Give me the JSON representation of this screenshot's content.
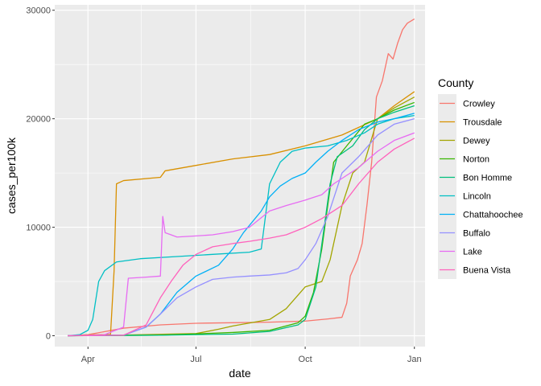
{
  "chart_data": {
    "type": "line",
    "title": "",
    "xlabel": "date",
    "ylabel": "cases_per100k",
    "x_ticks": [
      "Apr",
      "Jul",
      "Oct",
      "Jan"
    ],
    "y_ticks": [
      "0",
      "10000",
      "20000",
      "30000"
    ],
    "xlim": [
      "2020-03-04",
      "2021-01-10"
    ],
    "ylim": [
      -1000,
      30500
    ],
    "grid": true,
    "legend_position": "right",
    "legend_title": "County",
    "series": [
      {
        "name": "Crowley",
        "color": "#F8766D",
        "points": [
          [
            "2020-03-15",
            0
          ],
          [
            "2020-04-01",
            100
          ],
          [
            "2020-05-01",
            700
          ],
          [
            "2020-06-01",
            1000
          ],
          [
            "2020-07-01",
            1150
          ],
          [
            "2020-08-01",
            1200
          ],
          [
            "2020-09-01",
            1250
          ],
          [
            "2020-10-01",
            1350
          ],
          [
            "2020-10-20",
            1550
          ],
          [
            "2020-11-01",
            1700
          ],
          [
            "2020-11-05",
            3000
          ],
          [
            "2020-11-08",
            5500
          ],
          [
            "2020-11-14",
            7000
          ],
          [
            "2020-11-18",
            8500
          ],
          [
            "2020-11-22",
            12000
          ],
          [
            "2020-11-26",
            16000
          ],
          [
            "2020-11-30",
            22000
          ],
          [
            "2020-12-05",
            23500
          ],
          [
            "2020-12-10",
            26000
          ],
          [
            "2020-12-14",
            25500
          ],
          [
            "2020-12-18",
            27000
          ],
          [
            "2020-12-22",
            28200
          ],
          [
            "2020-12-26",
            28800
          ],
          [
            "2021-01-01",
            29200
          ]
        ]
      },
      {
        "name": "Trousdale",
        "color": "#D89000",
        "points": [
          [
            "2020-03-15",
            0
          ],
          [
            "2020-04-01",
            80
          ],
          [
            "2020-04-20",
            120
          ],
          [
            "2020-04-23",
            6000
          ],
          [
            "2020-04-25",
            14000
          ],
          [
            "2020-05-01",
            14300
          ],
          [
            "2020-06-01",
            14600
          ],
          [
            "2020-06-05",
            15200
          ],
          [
            "2020-07-01",
            15700
          ],
          [
            "2020-08-01",
            16300
          ],
          [
            "2020-09-01",
            16700
          ],
          [
            "2020-10-01",
            17500
          ],
          [
            "2020-11-01",
            18500
          ],
          [
            "2020-12-01",
            20000
          ],
          [
            "2020-12-15",
            21200
          ],
          [
            "2021-01-01",
            22500
          ]
        ]
      },
      {
        "name": "Dewey",
        "color": "#A3A500",
        "points": [
          [
            "2020-03-15",
            0
          ],
          [
            "2020-05-01",
            60
          ],
          [
            "2020-07-01",
            200
          ],
          [
            "2020-07-20",
            600
          ],
          [
            "2020-08-01",
            900
          ],
          [
            "2020-09-01",
            1500
          ],
          [
            "2020-09-15",
            2500
          ],
          [
            "2020-10-01",
            4500
          ],
          [
            "2020-10-15",
            5000
          ],
          [
            "2020-10-22",
            7000
          ],
          [
            "2020-11-01",
            12000
          ],
          [
            "2020-11-10",
            15000
          ],
          [
            "2020-11-20",
            16000
          ],
          [
            "2020-12-01",
            20000
          ],
          [
            "2020-12-15",
            21000
          ],
          [
            "2021-01-01",
            22000
          ]
        ]
      },
      {
        "name": "Norton",
        "color": "#39B600",
        "points": [
          [
            "2020-03-15",
            0
          ],
          [
            "2020-06-01",
            50
          ],
          [
            "2020-08-01",
            300
          ],
          [
            "2020-09-01",
            500
          ],
          [
            "2020-09-25",
            1200
          ],
          [
            "2020-10-01",
            1800
          ],
          [
            "2020-10-08",
            4000
          ],
          [
            "2020-10-15",
            8000
          ],
          [
            "2020-10-20",
            12000
          ],
          [
            "2020-10-25",
            16000
          ],
          [
            "2020-11-05",
            17500
          ],
          [
            "2020-11-20",
            19500
          ],
          [
            "2020-12-01",
            20000
          ],
          [
            "2020-12-15",
            20800
          ],
          [
            "2021-01-01",
            21500
          ]
        ]
      },
      {
        "name": "Bon Homme",
        "color": "#00BF7D",
        "points": [
          [
            "2020-03-15",
            0
          ],
          [
            "2020-06-01",
            50
          ],
          [
            "2020-08-01",
            150
          ],
          [
            "2020-09-01",
            400
          ],
          [
            "2020-09-25",
            1000
          ],
          [
            "2020-10-01",
            1500
          ],
          [
            "2020-10-10",
            4500
          ],
          [
            "2020-10-17",
            10000
          ],
          [
            "2020-10-22",
            14000
          ],
          [
            "2020-10-28",
            16500
          ],
          [
            "2020-11-10",
            17500
          ],
          [
            "2020-11-20",
            19000
          ],
          [
            "2020-12-01",
            20000
          ],
          [
            "2020-12-15",
            20600
          ],
          [
            "2021-01-01",
            21200
          ]
        ]
      },
      {
        "name": "Lincoln",
        "color": "#00BFC4",
        "points": [
          [
            "2020-03-15",
            0
          ],
          [
            "2020-03-25",
            100
          ],
          [
            "2020-04-01",
            500
          ],
          [
            "2020-04-05",
            1500
          ],
          [
            "2020-04-10",
            5000
          ],
          [
            "2020-04-15",
            6000
          ],
          [
            "2020-04-25",
            6800
          ],
          [
            "2020-05-15",
            7100
          ],
          [
            "2020-06-15",
            7300
          ],
          [
            "2020-07-15",
            7500
          ],
          [
            "2020-08-15",
            7700
          ],
          [
            "2020-08-25",
            8000
          ],
          [
            "2020-09-01",
            14000
          ],
          [
            "2020-09-10",
            16000
          ],
          [
            "2020-09-20",
            17000
          ],
          [
            "2020-10-01",
            17300
          ],
          [
            "2020-10-20",
            17500
          ],
          [
            "2020-11-05",
            18000
          ],
          [
            "2020-11-20",
            18700
          ],
          [
            "2020-12-01",
            19500
          ],
          [
            "2020-12-15",
            20000
          ],
          [
            "2021-01-01",
            20300
          ]
        ]
      },
      {
        "name": "Chattahoochee",
        "color": "#00B0F6",
        "points": [
          [
            "2020-03-15",
            0
          ],
          [
            "2020-05-01",
            60
          ],
          [
            "2020-05-20",
            800
          ],
          [
            "2020-06-01",
            2000
          ],
          [
            "2020-06-15",
            4000
          ],
          [
            "2020-07-01",
            5500
          ],
          [
            "2020-07-20",
            6500
          ],
          [
            "2020-08-01",
            8000
          ],
          [
            "2020-08-10",
            9500
          ],
          [
            "2020-08-25",
            11500
          ],
          [
            "2020-09-01",
            12800
          ],
          [
            "2020-09-10",
            13800
          ],
          [
            "2020-09-20",
            14500
          ],
          [
            "2020-10-01",
            15000
          ],
          [
            "2020-10-10",
            16000
          ],
          [
            "2020-10-20",
            17000
          ],
          [
            "2020-11-01",
            18000
          ],
          [
            "2020-11-15",
            19000
          ],
          [
            "2020-12-01",
            19700
          ],
          [
            "2020-12-15",
            20000
          ],
          [
            "2021-01-01",
            20500
          ]
        ]
      },
      {
        "name": "Buffalo",
        "color": "#9590FF",
        "points": [
          [
            "2020-03-15",
            0
          ],
          [
            "2020-05-01",
            50
          ],
          [
            "2020-05-20",
            800
          ],
          [
            "2020-06-01",
            2000
          ],
          [
            "2020-06-15",
            3500
          ],
          [
            "2020-07-01",
            4500
          ],
          [
            "2020-07-15",
            5200
          ],
          [
            "2020-08-01",
            5400
          ],
          [
            "2020-08-15",
            5500
          ],
          [
            "2020-09-01",
            5600
          ],
          [
            "2020-09-15",
            5800
          ],
          [
            "2020-09-25",
            6200
          ],
          [
            "2020-10-01",
            7000
          ],
          [
            "2020-10-10",
            8500
          ],
          [
            "2020-10-20",
            11000
          ],
          [
            "2020-11-01",
            15000
          ],
          [
            "2020-11-15",
            16500
          ],
          [
            "2020-12-01",
            18500
          ],
          [
            "2020-12-15",
            19500
          ],
          [
            "2021-01-01",
            20000
          ]
        ]
      },
      {
        "name": "Lake",
        "color": "#E76BF3",
        "points": [
          [
            "2020-03-15",
            0
          ],
          [
            "2020-04-15",
            100
          ],
          [
            "2020-05-01",
            800
          ],
          [
            "2020-05-05",
            5300
          ],
          [
            "2020-05-20",
            5400
          ],
          [
            "2020-06-01",
            5500
          ],
          [
            "2020-06-03",
            11000
          ],
          [
            "2020-06-05",
            9500
          ],
          [
            "2020-06-10",
            9300
          ],
          [
            "2020-06-15",
            9100
          ],
          [
            "2020-07-01",
            9200
          ],
          [
            "2020-07-15",
            9300
          ],
          [
            "2020-08-01",
            9600
          ],
          [
            "2020-08-15",
            10000
          ],
          [
            "2020-09-01",
            11500
          ],
          [
            "2020-09-15",
            12000
          ],
          [
            "2020-10-01",
            12500
          ],
          [
            "2020-10-15",
            13000
          ],
          [
            "2020-10-25",
            14000
          ],
          [
            "2020-11-01",
            14500
          ],
          [
            "2020-11-15",
            15500
          ],
          [
            "2020-12-01",
            17000
          ],
          [
            "2020-12-15",
            18000
          ],
          [
            "2021-01-01",
            18700
          ]
        ]
      },
      {
        "name": "Buena Vista",
        "color": "#FF62BC",
        "points": [
          [
            "2020-03-15",
            0
          ],
          [
            "2020-05-01",
            50
          ],
          [
            "2020-05-20",
            1000
          ],
          [
            "2020-06-01",
            3500
          ],
          [
            "2020-06-10",
            5000
          ],
          [
            "2020-06-20",
            6500
          ],
          [
            "2020-07-01",
            7500
          ],
          [
            "2020-07-15",
            8200
          ],
          [
            "2020-08-01",
            8500
          ],
          [
            "2020-08-15",
            8700
          ],
          [
            "2020-09-01",
            9000
          ],
          [
            "2020-09-15",
            9300
          ],
          [
            "2020-10-01",
            10000
          ],
          [
            "2020-10-15",
            10800
          ],
          [
            "2020-11-01",
            12000
          ],
          [
            "2020-11-15",
            14000
          ],
          [
            "2020-12-01",
            16000
          ],
          [
            "2020-12-15",
            17200
          ],
          [
            "2021-01-01",
            18200
          ]
        ]
      }
    ]
  }
}
